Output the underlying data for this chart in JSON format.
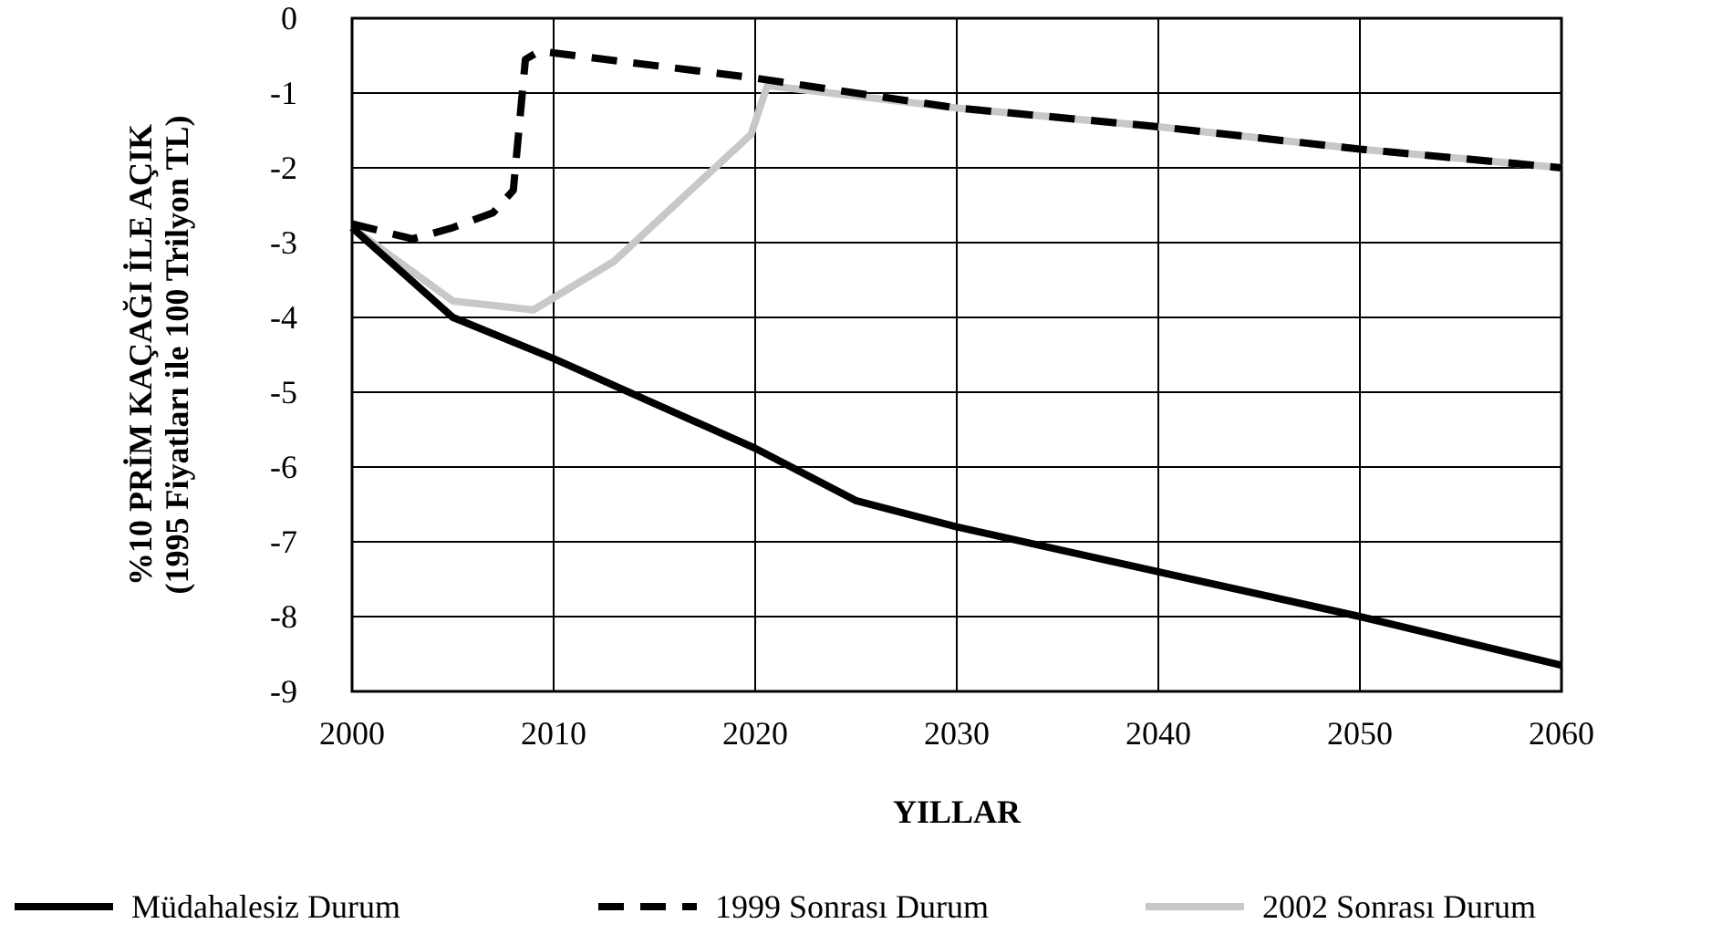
{
  "chart_data": {
    "type": "line",
    "xlabel": "YILLAR",
    "ylabel": "%10 PRİM KAÇAĞI İLE AÇIK\n(1995 Fiyatları ile 100 Trilyon TL)",
    "xlim": [
      2000,
      2060
    ],
    "xticks": [
      2000,
      2010,
      2020,
      2030,
      2040,
      2050,
      2060
    ],
    "ylim": [
      -9,
      0
    ],
    "yticks": [
      0,
      -1,
      -2,
      -3,
      -4,
      -5,
      -6,
      -7,
      -8,
      -9
    ],
    "grid": true,
    "legend": "bottom",
    "series": [
      {
        "name": "Müdahalesiz Durum",
        "color": "#000000",
        "line_style": "solid",
        "x": [
          2000,
          2005,
          2010,
          2020,
          2025,
          2030,
          2040,
          2050,
          2060
        ],
        "values": [
          -2.8,
          -4.0,
          -4.55,
          -5.75,
          -6.45,
          -6.8,
          -7.4,
          -8.0,
          -8.65
        ]
      },
      {
        "name": "1999 Sonrası Durum",
        "color": "#000000",
        "line_style": "dashed",
        "x": [
          2000,
          2003,
          2005,
          2007,
          2008,
          2008.6,
          2009.3,
          2020,
          2030,
          2040,
          2050,
          2060
        ],
        "values": [
          -2.75,
          -2.95,
          -2.8,
          -2.6,
          -2.3,
          -0.55,
          -0.44,
          -0.8,
          -1.2,
          -1.45,
          -1.75,
          -2.0
        ]
      },
      {
        "name": "2002 Sonrası Durum",
        "color": "#c8c8c8",
        "line_style": "solid",
        "x": [
          2000,
          2005,
          2009,
          2013,
          2016,
          2019.8,
          2020.6,
          2030,
          2040,
          2050,
          2060
        ],
        "values": [
          -2.8,
          -3.78,
          -3.9,
          -3.25,
          -2.5,
          -1.55,
          -0.9,
          -1.2,
          -1.45,
          -1.75,
          -2.0
        ]
      }
    ]
  }
}
